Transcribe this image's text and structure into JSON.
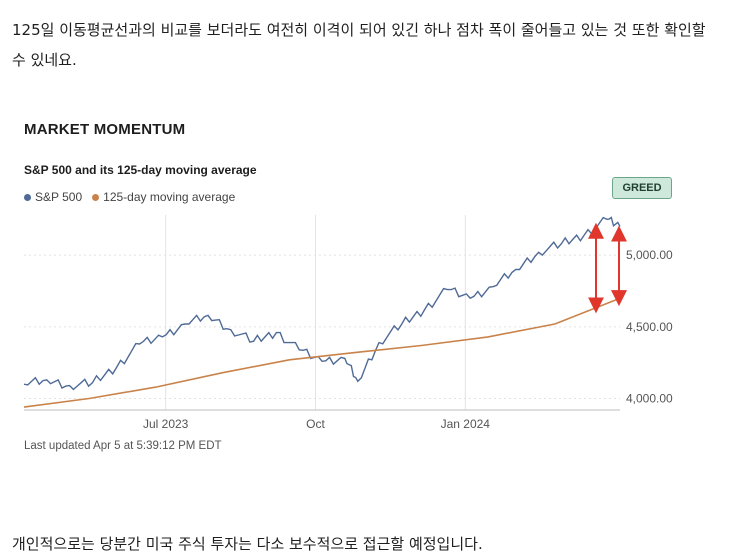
{
  "article": {
    "paragraph_1": "125일 이동평균선과의 비교를 보더라도 여전히 이격이 되어 있긴 하나 점차 폭이 줄어들고 있는 것 또한 확인할 수 있네요.",
    "paragraph_2": "개인적으로는 당분간 미국 주식 투자는 다소 보수적으로 접근할 예정입니다."
  },
  "chart": {
    "title": "MARKET MOMENTUM",
    "subtitle": "S&P 500 and its 125-day moving average",
    "badge": "GREED",
    "updated": "Last updated Apr 5 at 5:39:12 PM EDT",
    "legend": [
      {
        "label": "S&P 500",
        "color": "#4f6a97"
      },
      {
        "label": "125-day moving average",
        "color": "#c9834a"
      }
    ]
  },
  "colors": {
    "sp500": "#4f6a97",
    "moving_average": "#c9834a",
    "arrow": "#e0362c",
    "grid": "#e3e3e3"
  },
  "chart_data": {
    "type": "line",
    "title": "MARKET MOMENTUM",
    "subtitle": "S&P 500 and its 125-day moving average",
    "xlabel": "",
    "ylabel": "",
    "x_ticks": [
      "Jul 2023",
      "Oct",
      "Jan 2024"
    ],
    "y_ticks": [
      4000,
      4500,
      5000
    ],
    "y_tick_labels": [
      "4,000.00",
      "4,500.00",
      "5,000.00"
    ],
    "ylim": [
      3920,
      5280
    ],
    "x_range": [
      "2023-04-05",
      "2024-04-05"
    ],
    "grid": true,
    "legend": "top-left",
    "annotation": "double-headed arrows showing the gap between S&P 500 and its 125-day moving average",
    "series": [
      {
        "name": "S&P 500",
        "x": [
          "2023-04-05",
          "2023-04-19",
          "2023-05-03",
          "2023-05-17",
          "2023-06-01",
          "2023-06-15",
          "2023-06-29",
          "2023-07-13",
          "2023-07-27",
          "2023-08-10",
          "2023-08-24",
          "2023-09-07",
          "2023-09-21",
          "2023-10-05",
          "2023-10-19",
          "2023-10-27",
          "2023-11-09",
          "2023-11-23",
          "2023-12-07",
          "2023-12-21",
          "2024-01-04",
          "2024-01-18",
          "2024-02-01",
          "2024-02-15",
          "2024-02-29",
          "2024-03-14",
          "2024-03-28",
          "2024-04-05"
        ],
        "values": [
          4100,
          4130,
          4090,
          4110,
          4220,
          4380,
          4430,
          4520,
          4580,
          4480,
          4400,
          4460,
          4340,
          4260,
          4280,
          4120,
          4390,
          4520,
          4620,
          4760,
          4700,
          4780,
          4900,
          5020,
          5080,
          5140,
          5250,
          5200
        ]
      },
      {
        "name": "125-day moving average",
        "x": [
          "2023-04-05",
          "2023-05-15",
          "2023-06-25",
          "2023-08-05",
          "2023-09-15",
          "2023-10-25",
          "2023-12-05",
          "2024-01-15",
          "2024-02-25",
          "2024-04-05"
        ],
        "values": [
          3940,
          4000,
          4080,
          4180,
          4270,
          4320,
          4370,
          4430,
          4520,
          4700
        ]
      }
    ]
  }
}
